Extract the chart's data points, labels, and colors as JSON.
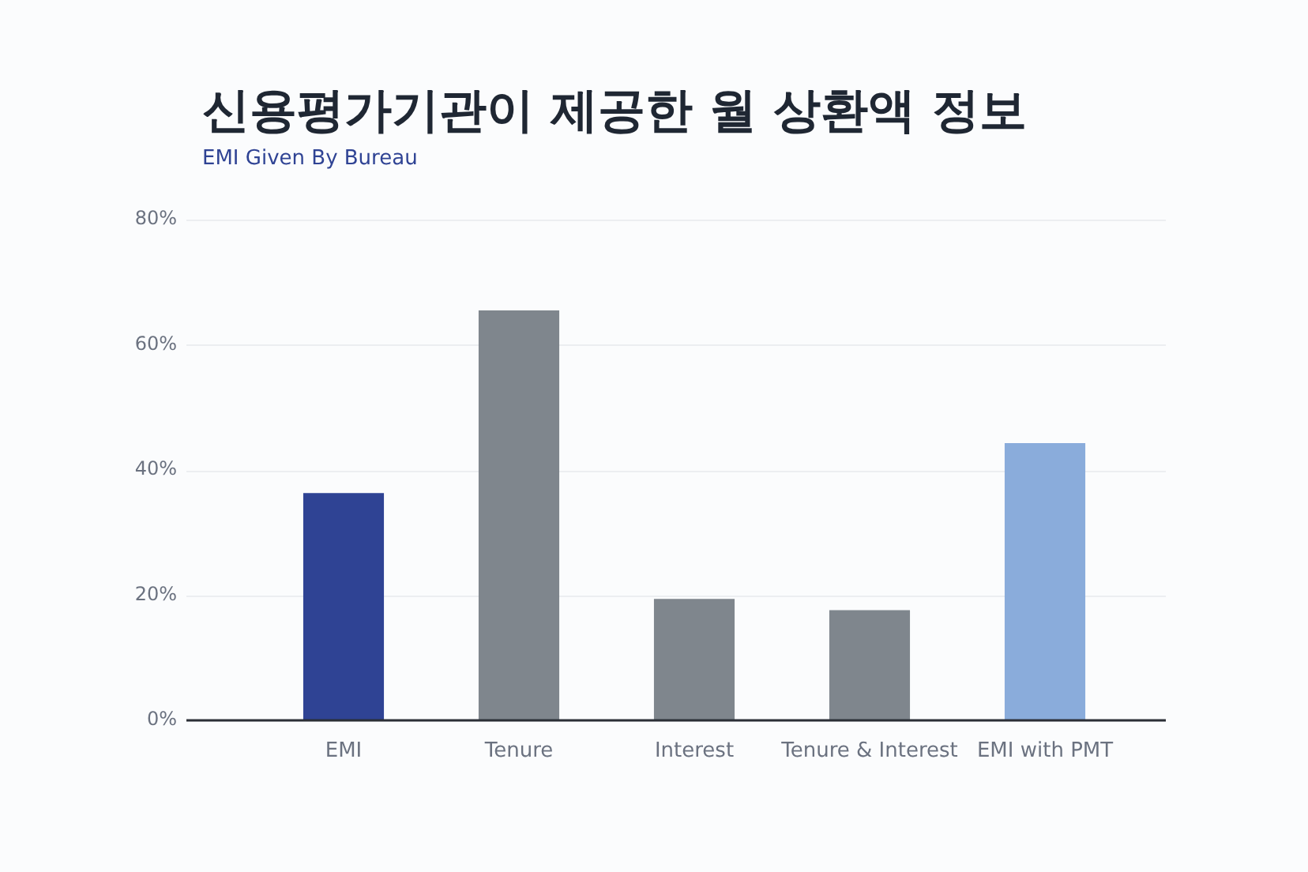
{
  "chart_data": {
    "type": "bar",
    "title": "신용평가기관이 제공한 월 상환액 정보",
    "subtitle": "EMI Given By Bureau",
    "categories": [
      "EMI",
      "Tenure",
      "Interest",
      "Tenure & Interest",
      "EMI with PMT"
    ],
    "values": [
      36.3,
      65.5,
      19.4,
      17.6,
      44.3
    ],
    "colors": [
      "#2f4394",
      "#7f868d",
      "#7f868d",
      "#7f868d",
      "#8aacdb"
    ],
    "ylim": [
      0,
      80
    ],
    "yticks": [
      {
        "value": 0,
        "label": "0%"
      },
      {
        "value": 20,
        "label": "20%"
      },
      {
        "value": 40,
        "label": "40%"
      },
      {
        "value": 60,
        "label": "60%"
      },
      {
        "value": 80,
        "label": "80%"
      }
    ],
    "grid": "y",
    "legend": false
  }
}
